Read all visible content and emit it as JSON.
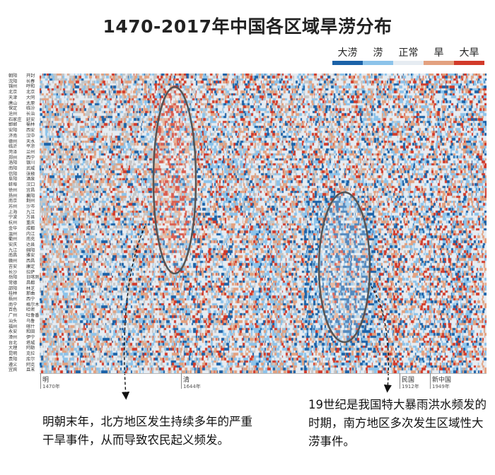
{
  "chart_data": {
    "type": "heatmap",
    "title": "1470-2017年中国各区域旱涝分布",
    "x_range": [
      1470,
      2017
    ],
    "categories_legend": [
      "大涝",
      "涝",
      "正常",
      "旱",
      "大旱"
    ],
    "category_colors": {
      "大涝": "#1b62a8",
      "涝": "#8cc3ea",
      "正常": "#e6ecf2",
      "旱": "#e3a17f",
      "大旱": "#d23a2a",
      "missing": "#c6c6c6"
    },
    "stations_left": [
      "朝阳",
      "沈阳",
      "锦州",
      "北京",
      "天津",
      "唐山",
      "保定",
      "沧州",
      "石家庄",
      "邯郸",
      "安阳",
      "济南",
      "德州",
      "临沂",
      "菏泽",
      "郑州",
      "洛阳",
      "南阳",
      "信阳",
      "阜阳",
      "蚌埠",
      "徐州",
      "扬州",
      "南京",
      "苏州",
      "上海",
      "宁波",
      "杭州",
      "金华",
      "温州",
      "衢州",
      "安庆",
      "九江",
      "南昌",
      "赣州",
      "吉安",
      "长沙",
      "岳阳",
      "常德",
      "邵阳",
      "桂林",
      "梧州",
      "南宁",
      "百色",
      "广州",
      "汕头",
      "福州",
      "永安",
      "漳州",
      "台北",
      "大理",
      "昆明",
      "贵阳",
      "遵义",
      "宜宾"
    ],
    "stations_right": [
      "开封",
      "长春",
      "呼和",
      "北京",
      "大同",
      "太原",
      "临汾",
      "长治",
      "延安",
      "榆林",
      "西安",
      "汉中",
      "天水",
      "平凉",
      "兰州",
      "西宁",
      "银川",
      "武威",
      "张掖",
      "酒泉",
      "汉口",
      "宜昌",
      "襄阳",
      "荆州",
      "沙市",
      "九江",
      "万县",
      "重庆",
      "成都",
      "内江",
      "南充",
      "达县",
      "绵阳",
      "雅安",
      "西昌",
      "康定",
      "拉萨",
      "日喀则",
      "昌都",
      "林芝",
      "那曲",
      "西宁",
      "格尔木",
      "哈密",
      "吐鲁番",
      "乌鲁",
      "喀什",
      "和田",
      "伊宁",
      "塔城",
      "阿勒",
      "克拉",
      "库尔",
      "阿克",
      "且末"
    ],
    "eras": [
      {
        "name": "明",
        "year": "1470年"
      },
      {
        "name": "清",
        "year": "1644年"
      },
      {
        "name": "民国",
        "year": "1912年"
      },
      {
        "name": "新中国",
        "year": "1949年"
      }
    ],
    "annotations": [
      "明朝末年，北方地区发生持续多年的严重干旱事件，从而导致农民起义频发。",
      "19世纪是我国特大暴雨洪水频发的时期，南方地区多次发生区域性大涝事件。"
    ]
  },
  "labels": {
    "legend_1": "大涝",
    "legend_2": "涝",
    "legend_3": "正常",
    "legend_4": "旱",
    "legend_5": "大旱",
    "era_ming": "明",
    "era_qing": "清",
    "era_minguo": "民国",
    "era_xinzhongguo": "新中国",
    "year_ming": "1470年",
    "year_qing": "1644年",
    "year_minguo": "1912年",
    "year_xinzhongguo": "1949年"
  }
}
